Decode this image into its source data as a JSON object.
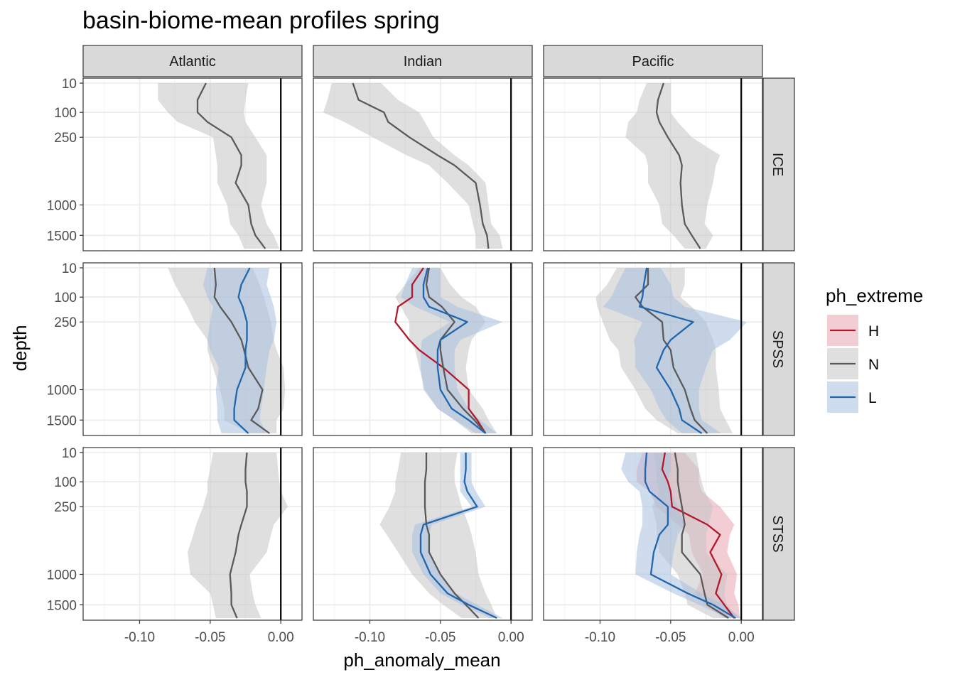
{
  "chart_data": {
    "type": "line",
    "title": "basin-biome-mean profiles spring",
    "xlabel": "ph_anomaly_mean",
    "ylabel": "depth",
    "x_ticks": [
      -0.1,
      -0.05,
      0.0
    ],
    "x_tick_labels": [
      "-0.10",
      "-0.05",
      "0.00"
    ],
    "xlim": [
      -0.14,
      0.015
    ],
    "y_ticks": [
      10,
      100,
      250,
      1000,
      1500
    ],
    "y_tick_labels": [
      "10",
      "100",
      "250",
      "1000",
      "1500"
    ],
    "ylim": [
      1750,
      0
    ],
    "y_scale": "reversed, square-root",
    "columns": [
      "Atlantic",
      "Indian",
      "Pacific"
    ],
    "rows": [
      "ICE",
      "SPSS",
      "STSS"
    ],
    "depths": [
      10,
      50,
      100,
      150,
      250,
      400,
      500,
      700,
      1000,
      1300,
      1500,
      1750
    ],
    "vline_x": 0,
    "legend": {
      "title": "ph_extreme",
      "position": "right",
      "items": [
        {
          "label": "H",
          "color": "#b2182b",
          "fill": "#e8a6b0"
        },
        {
          "label": "N",
          "color": "#5a5a5a",
          "fill": "#c4c4c4"
        },
        {
          "label": "L",
          "color": "#2166ac",
          "fill": "#a5c0de"
        }
      ]
    },
    "panels": [
      {
        "row": "ICE",
        "col": "Atlantic",
        "series": [
          {
            "name": "N",
            "mean": [
              -0.053,
              -0.059,
              -0.059,
              -0.052,
              -0.035,
              -0.028,
              -0.028,
              -0.032,
              -0.023,
              -0.021,
              -0.018,
              -0.011
            ],
            "lower": [
              -0.087,
              -0.087,
              -0.08,
              -0.073,
              -0.048,
              -0.046,
              -0.045,
              -0.045,
              -0.038,
              -0.036,
              -0.03,
              -0.026
            ],
            "upper": [
              -0.023,
              -0.025,
              -0.026,
              -0.025,
              -0.018,
              -0.01,
              -0.01,
              -0.01,
              -0.014,
              -0.01,
              -0.005,
              -0.001
            ]
          }
        ]
      },
      {
        "row": "ICE",
        "col": "Indian",
        "series": [
          {
            "name": "N",
            "mean": [
              -0.112,
              -0.108,
              -0.09,
              -0.087,
              -0.072,
              -0.052,
              -0.04,
              -0.025,
              -0.022,
              -0.02,
              -0.017,
              -0.016
            ],
            "lower": [
              -0.127,
              -0.13,
              -0.133,
              -0.118,
              -0.098,
              -0.074,
              -0.058,
              -0.045,
              -0.03,
              -0.027,
              -0.025,
              -0.025
            ],
            "upper": [
              -0.092,
              -0.08,
              -0.065,
              -0.061,
              -0.055,
              -0.04,
              -0.03,
              -0.018,
              -0.016,
              -0.014,
              -0.008,
              -0.006
            ]
          }
        ]
      },
      {
        "row": "ICE",
        "col": "Pacific",
        "series": [
          {
            "name": "N",
            "mean": [
              -0.055,
              -0.059,
              -0.06,
              -0.058,
              -0.052,
              -0.044,
              -0.042,
              -0.043,
              -0.042,
              -0.04,
              -0.035,
              -0.029
            ],
            "lower": [
              -0.067,
              -0.072,
              -0.074,
              -0.08,
              -0.082,
              -0.068,
              -0.066,
              -0.066,
              -0.058,
              -0.056,
              -0.048,
              -0.04
            ],
            "upper": [
              -0.05,
              -0.05,
              -0.05,
              -0.045,
              -0.035,
              -0.015,
              -0.018,
              -0.02,
              -0.024,
              -0.026,
              -0.02,
              -0.025
            ]
          }
        ]
      },
      {
        "row": "SPSS",
        "col": "Atlantic",
        "series": [
          {
            "name": "N",
            "mean": [
              -0.047,
              -0.046,
              -0.047,
              -0.043,
              -0.035,
              -0.028,
              -0.026,
              -0.023,
              -0.013,
              -0.016,
              -0.021,
              -0.008
            ],
            "lower": [
              -0.08,
              -0.075,
              -0.07,
              -0.066,
              -0.061,
              -0.052,
              -0.052,
              -0.048,
              -0.043,
              -0.04,
              -0.04,
              -0.022
            ],
            "upper": [
              -0.02,
              -0.015,
              -0.012,
              -0.01,
              -0.007,
              -0.005,
              -0.003,
              0.002,
              0.003,
              0.002,
              -0.003,
              -0.003
            ]
          },
          {
            "name": "L",
            "mean": [
              -0.022,
              -0.028,
              -0.03,
              -0.027,
              -0.024,
              -0.024,
              -0.025,
              -0.025,
              -0.031,
              -0.033,
              -0.033,
              -0.023
            ],
            "lower": [
              -0.052,
              -0.055,
              -0.052,
              -0.048,
              -0.05,
              -0.052,
              -0.05,
              -0.044,
              -0.046,
              -0.045,
              -0.045,
              -0.042
            ],
            "upper": [
              -0.008,
              -0.01,
              -0.007,
              -0.005,
              -0.003,
              -0.005,
              -0.008,
              -0.01,
              -0.012,
              -0.014,
              -0.015,
              -0.01
            ]
          }
        ]
      },
      {
        "row": "SPSS",
        "col": "Indian",
        "series": [
          {
            "name": "H",
            "mean": [
              -0.062,
              -0.07,
              -0.07,
              -0.08,
              -0.082,
              -0.072,
              -0.065,
              -0.048,
              -0.03,
              -0.03,
              -0.024,
              -0.018
            ],
            "lower": [
              -0.062,
              -0.07,
              -0.07,
              -0.08,
              -0.082,
              -0.072,
              -0.065,
              -0.048,
              -0.03,
              -0.03,
              -0.024,
              -0.018
            ],
            "upper": [
              -0.062,
              -0.07,
              -0.07,
              -0.08,
              -0.082,
              -0.072,
              -0.065,
              -0.048,
              -0.03,
              -0.03,
              -0.024,
              -0.018
            ]
          },
          {
            "name": "N",
            "mean": [
              -0.058,
              -0.06,
              -0.058,
              -0.049,
              -0.04,
              -0.05,
              -0.05,
              -0.048,
              -0.045,
              -0.034,
              -0.026,
              -0.018
            ],
            "lower": [
              -0.065,
              -0.075,
              -0.082,
              -0.078,
              -0.072,
              -0.072,
              -0.068,
              -0.065,
              -0.061,
              -0.052,
              -0.04,
              -0.028
            ],
            "upper": [
              -0.05,
              -0.043,
              -0.035,
              -0.025,
              -0.018,
              -0.028,
              -0.03,
              -0.032,
              -0.03,
              -0.02,
              -0.016,
              -0.01
            ]
          },
          {
            "name": "L",
            "mean": [
              -0.059,
              -0.062,
              -0.062,
              -0.058,
              -0.031,
              -0.05,
              -0.052,
              -0.052,
              -0.05,
              -0.042,
              -0.03,
              -0.018
            ],
            "lower": [
              -0.07,
              -0.075,
              -0.078,
              -0.068,
              -0.043,
              -0.063,
              -0.064,
              -0.064,
              -0.062,
              -0.052,
              -0.04,
              -0.025
            ],
            "upper": [
              -0.05,
              -0.05,
              -0.05,
              -0.038,
              -0.006,
              -0.036,
              -0.04,
              -0.04,
              -0.038,
              -0.03,
              -0.022,
              -0.01
            ]
          }
        ]
      },
      {
        "row": "SPSS",
        "col": "Pacific",
        "series": [
          {
            "name": "N",
            "mean": [
              -0.066,
              -0.066,
              -0.075,
              -0.07,
              -0.056,
              -0.055,
              -0.05,
              -0.048,
              -0.04,
              -0.036,
              -0.033,
              -0.024
            ],
            "lower": [
              -0.088,
              -0.095,
              -0.103,
              -0.102,
              -0.098,
              -0.093,
              -0.087,
              -0.085,
              -0.075,
              -0.068,
              -0.06,
              -0.045
            ],
            "upper": [
              -0.04,
              -0.04,
              -0.043,
              -0.035,
              -0.025,
              -0.02,
              -0.018,
              -0.018,
              -0.016,
              -0.015,
              -0.011,
              -0.006
            ]
          },
          {
            "name": "L",
            "mean": [
              -0.067,
              -0.069,
              -0.07,
              -0.072,
              -0.034,
              -0.05,
              -0.055,
              -0.06,
              -0.05,
              -0.044,
              -0.042,
              -0.028
            ],
            "lower": [
              -0.082,
              -0.088,
              -0.092,
              -0.098,
              -0.07,
              -0.076,
              -0.075,
              -0.075,
              -0.064,
              -0.058,
              -0.053,
              -0.042
            ],
            "upper": [
              -0.057,
              -0.05,
              -0.048,
              -0.04,
              0.004,
              -0.008,
              -0.02,
              -0.025,
              -0.03,
              -0.03,
              -0.028,
              -0.014
            ]
          }
        ]
      },
      {
        "row": "STSS",
        "col": "Atlantic",
        "series": [
          {
            "name": "N",
            "mean": [
              -0.024,
              -0.025,
              -0.025,
              -0.024,
              -0.024,
              -0.028,
              -0.03,
              -0.032,
              -0.036,
              -0.035,
              -0.035,
              -0.031
            ],
            "lower": [
              -0.048,
              -0.05,
              -0.052,
              -0.052,
              -0.055,
              -0.06,
              -0.062,
              -0.066,
              -0.064,
              -0.05,
              -0.048,
              -0.046
            ],
            "upper": [
              -0.003,
              -0.002,
              -0.001,
              0.0,
              0.005,
              -0.005,
              -0.007,
              -0.01,
              -0.022,
              -0.02,
              -0.018,
              -0.014
            ]
          }
        ]
      },
      {
        "row": "STSS",
        "col": "Indian",
        "series": [
          {
            "name": "N",
            "mean": [
              -0.06,
              -0.06,
              -0.061,
              -0.061,
              -0.061,
              -0.06,
              -0.058,
              -0.058,
              -0.05,
              -0.04,
              -0.032,
              -0.023
            ],
            "lower": [
              -0.078,
              -0.08,
              -0.082,
              -0.082,
              -0.086,
              -0.093,
              -0.088,
              -0.08,
              -0.07,
              -0.058,
              -0.048,
              -0.035
            ],
            "upper": [
              -0.038,
              -0.04,
              -0.04,
              -0.038,
              -0.035,
              -0.03,
              -0.028,
              -0.025,
              -0.023,
              -0.018,
              -0.014,
              -0.01
            ]
          },
          {
            "name": "L",
            "mean": [
              -0.032,
              -0.032,
              -0.033,
              -0.031,
              -0.024,
              -0.062,
              -0.064,
              -0.064,
              -0.057,
              -0.045,
              -0.03,
              -0.01
            ],
            "lower": [
              -0.036,
              -0.036,
              -0.036,
              -0.036,
              -0.028,
              -0.068,
              -0.07,
              -0.07,
              -0.062,
              -0.05,
              -0.035,
              -0.015
            ],
            "upper": [
              -0.028,
              -0.028,
              -0.028,
              -0.025,
              -0.018,
              -0.056,
              -0.058,
              -0.058,
              -0.05,
              -0.039,
              -0.024,
              -0.006
            ]
          }
        ]
      },
      {
        "row": "STSS",
        "col": "Pacific",
        "series": [
          {
            "name": "H",
            "mean": [
              -0.054,
              -0.056,
              -0.052,
              -0.05,
              -0.049,
              -0.024,
              -0.015,
              -0.022,
              -0.014,
              -0.018,
              -0.012,
              -0.005
            ],
            "lower": [
              -0.07,
              -0.074,
              -0.074,
              -0.065,
              -0.06,
              -0.045,
              -0.037,
              -0.035,
              -0.027,
              -0.033,
              -0.026,
              -0.012
            ],
            "upper": [
              -0.04,
              -0.03,
              -0.03,
              -0.028,
              -0.015,
              -0.005,
              -0.008,
              -0.01,
              -0.003,
              -0.005,
              -0.002,
              -0.001
            ]
          },
          {
            "name": "N",
            "mean": [
              -0.047,
              -0.045,
              -0.045,
              -0.044,
              -0.042,
              -0.04,
              -0.042,
              -0.042,
              -0.029,
              -0.026,
              -0.024,
              -0.009
            ],
            "lower": [
              -0.062,
              -0.06,
              -0.06,
              -0.058,
              -0.063,
              -0.06,
              -0.06,
              -0.058,
              -0.045,
              -0.04,
              -0.038,
              -0.02
            ],
            "upper": [
              -0.032,
              -0.03,
              -0.028,
              -0.026,
              -0.02,
              -0.023,
              -0.025,
              -0.025,
              -0.01,
              -0.012,
              -0.01,
              -0.002
            ]
          },
          {
            "name": "L",
            "mean": [
              -0.067,
              -0.068,
              -0.068,
              -0.065,
              -0.052,
              -0.052,
              -0.058,
              -0.062,
              -0.064,
              -0.038,
              -0.02,
              -0.004
            ],
            "lower": [
              -0.082,
              -0.085,
              -0.08,
              -0.072,
              -0.07,
              -0.07,
              -0.072,
              -0.074,
              -0.075,
              -0.048,
              -0.03,
              -0.01
            ],
            "upper": [
              -0.05,
              -0.05,
              -0.052,
              -0.05,
              -0.045,
              -0.04,
              -0.045,
              -0.048,
              -0.05,
              -0.028,
              -0.012,
              0.0
            ]
          }
        ]
      }
    ]
  }
}
